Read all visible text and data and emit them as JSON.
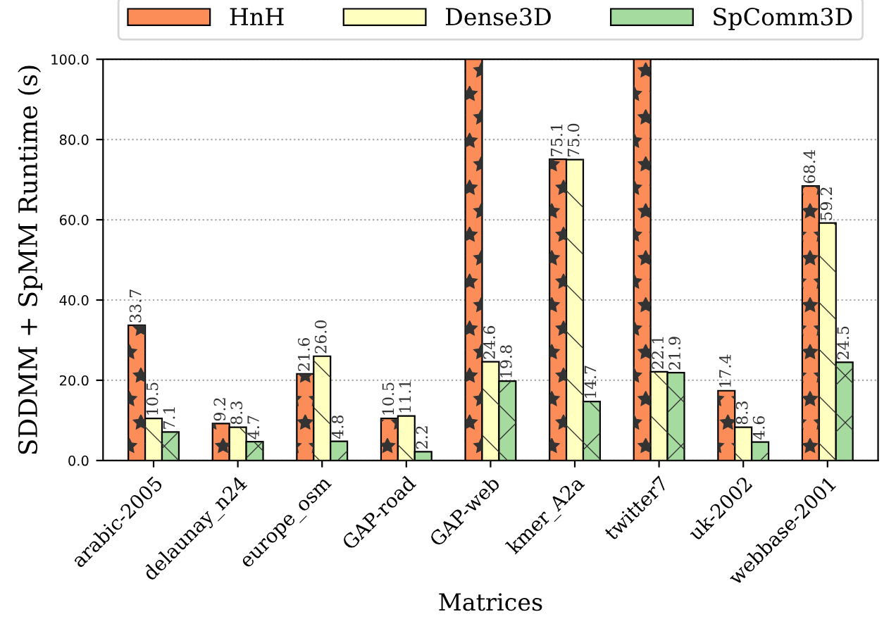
{
  "chart_data": {
    "type": "bar",
    "xlabel": "Matrices",
    "ylabel": "SDDMM + SpMM Runtime (s)",
    "categories": [
      "arabic-2005",
      "delaunay_n24",
      "europe_osm",
      "GAP-road",
      "GAP-web",
      "kmer_A2a",
      "twitter7",
      "uk-2002",
      "webbase-2001"
    ],
    "series": [
      {
        "name": "HnH",
        "color": "#fc8d59",
        "values": [
          33.7,
          9.2,
          21.6,
          10.5,
          100,
          75.1,
          100,
          17.4,
          68.4
        ],
        "value_labels": [
          "33.7",
          "9.2",
          "21.6",
          "10.5",
          null,
          "75.1",
          null,
          "17.4",
          "68.4"
        ]
      },
      {
        "name": "Dense3D",
        "color": "#ffffbf",
        "values": [
          10.5,
          8.3,
          26.0,
          11.1,
          24.6,
          75.0,
          22.1,
          8.3,
          59.2
        ],
        "value_labels": [
          "10.5",
          "8.3",
          "26.0",
          "11.1",
          "24.6",
          "75.0",
          "22.1",
          "8.3",
          "59.2"
        ]
      },
      {
        "name": "SpComm3D",
        "color": "#a6dba0",
        "values": [
          7.1,
          4.7,
          4.8,
          2.2,
          19.8,
          14.7,
          21.9,
          4.6,
          24.5
        ],
        "value_labels": [
          "7.1",
          "4.7",
          "4.8",
          "2.2",
          "19.8",
          "14.7",
          "21.9",
          "4.6",
          "24.5"
        ]
      }
    ],
    "ylim": [
      0,
      100
    ],
    "yticks": [
      {
        "value": 0,
        "label": "0.0"
      },
      {
        "value": 20,
        "label": "20.0"
      },
      {
        "value": 40,
        "label": "40.0"
      },
      {
        "value": 60,
        "label": "60.0"
      },
      {
        "value": 80,
        "label": "80.0"
      },
      {
        "value": 100,
        "label": "100.0"
      }
    ],
    "grid": "y",
    "legend": "top"
  }
}
